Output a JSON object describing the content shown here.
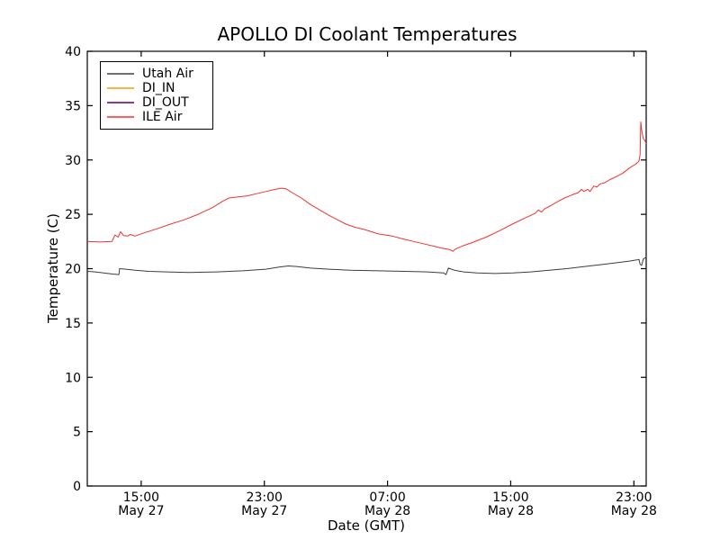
{
  "chart_data": {
    "type": "line",
    "title": "APOLLO DI Coolant Temperatures",
    "xlabel": "Date (GMT)",
    "ylabel": "Temperature (C)",
    "ylim": [
      0,
      40
    ],
    "yticks": [
      0,
      5,
      10,
      15,
      20,
      25,
      30,
      35,
      40
    ],
    "xlim": [
      11.5,
      47.8
    ],
    "x_unit": "hours since May 27 00:00 GMT",
    "xticks": [
      {
        "t": 15,
        "time": "15:00",
        "date": "May 27"
      },
      {
        "t": 23,
        "time": "23:00",
        "date": "May 27"
      },
      {
        "t": 31,
        "time": "07:00",
        "date": "May 28"
      },
      {
        "t": 39,
        "time": "15:00",
        "date": "May 28"
      },
      {
        "t": 47,
        "time": "23:00",
        "date": "May 28"
      }
    ],
    "grid": false,
    "legend_position": "upper left",
    "frame_color": "#000000",
    "background": "#ffffff",
    "series": [
      {
        "name": "Utah Air",
        "color": "#3d3d3d",
        "legend_color": "#6e6e6e",
        "points": [
          [
            11.5,
            19.75
          ],
          [
            12.0,
            19.7
          ],
          [
            12.55,
            19.6
          ],
          [
            13.15,
            19.5
          ],
          [
            13.55,
            19.45
          ],
          [
            13.6,
            20.0
          ],
          [
            14.0,
            19.95
          ],
          [
            14.6,
            19.85
          ],
          [
            15.5,
            19.75
          ],
          [
            16.65,
            19.7
          ],
          [
            18.1,
            19.65
          ],
          [
            19.9,
            19.7
          ],
          [
            21.6,
            19.8
          ],
          [
            23.1,
            19.95
          ],
          [
            23.95,
            20.15
          ],
          [
            24.55,
            20.25
          ],
          [
            25.1,
            20.2
          ],
          [
            26.0,
            20.05
          ],
          [
            27.2,
            19.95
          ],
          [
            28.6,
            19.85
          ],
          [
            30.4,
            19.8
          ],
          [
            32.1,
            19.75
          ],
          [
            33.6,
            19.7
          ],
          [
            34.65,
            19.6
          ],
          [
            34.8,
            19.45
          ],
          [
            34.95,
            20.05
          ],
          [
            35.35,
            19.85
          ],
          [
            35.95,
            19.7
          ],
          [
            36.8,
            19.6
          ],
          [
            38.0,
            19.55
          ],
          [
            39.15,
            19.6
          ],
          [
            40.3,
            19.7
          ],
          [
            41.5,
            19.85
          ],
          [
            42.65,
            20.0
          ],
          [
            43.8,
            20.2
          ],
          [
            45.0,
            20.4
          ],
          [
            45.9,
            20.55
          ],
          [
            46.75,
            20.7
          ],
          [
            47.2,
            20.8
          ],
          [
            47.33,
            20.85
          ],
          [
            47.4,
            20.4
          ],
          [
            47.5,
            20.3
          ],
          [
            47.62,
            20.9
          ],
          [
            47.74,
            21.0
          ],
          [
            47.8,
            20.9
          ]
        ]
      },
      {
        "name": "DI_IN",
        "color": "#ffa500",
        "legend_color": "#ffb340",
        "points": []
      },
      {
        "name": "DI_OUT",
        "color": "#800080",
        "legend_color": "#8e3a8e",
        "points": []
      },
      {
        "name": "ILE Air",
        "color": "#f03232",
        "legend_color": "#ff5f5f",
        "points": [
          [
            11.5,
            22.5
          ],
          [
            12.3,
            22.45
          ],
          [
            13.1,
            22.5
          ],
          [
            13.3,
            23.1
          ],
          [
            13.5,
            22.9
          ],
          [
            13.66,
            23.4
          ],
          [
            13.85,
            23.05
          ],
          [
            14.1,
            23.0
          ],
          [
            14.3,
            23.15
          ],
          [
            14.6,
            23.0
          ],
          [
            15.2,
            23.3
          ],
          [
            16.1,
            23.7
          ],
          [
            16.9,
            24.1
          ],
          [
            17.8,
            24.5
          ],
          [
            18.7,
            25.0
          ],
          [
            19.6,
            25.6
          ],
          [
            20.3,
            26.2
          ],
          [
            20.7,
            26.5
          ],
          [
            21.3,
            26.6
          ],
          [
            21.9,
            26.7
          ],
          [
            22.5,
            26.9
          ],
          [
            23.1,
            27.1
          ],
          [
            23.7,
            27.3
          ],
          [
            24.1,
            27.4
          ],
          [
            24.4,
            27.35
          ],
          [
            24.8,
            27.0
          ],
          [
            25.4,
            26.5
          ],
          [
            26.0,
            25.9
          ],
          [
            26.6,
            25.4
          ],
          [
            27.2,
            24.9
          ],
          [
            27.75,
            24.5
          ],
          [
            28.3,
            24.1
          ],
          [
            28.9,
            23.8
          ],
          [
            29.5,
            23.6
          ],
          [
            30.4,
            23.2
          ],
          [
            31.3,
            23.0
          ],
          [
            32.1,
            22.7
          ],
          [
            32.7,
            22.5
          ],
          [
            33.3,
            22.3
          ],
          [
            33.9,
            22.1
          ],
          [
            34.5,
            21.9
          ],
          [
            35.05,
            21.75
          ],
          [
            35.25,
            21.6
          ],
          [
            35.4,
            21.8
          ],
          [
            35.9,
            22.1
          ],
          [
            36.5,
            22.4
          ],
          [
            37.4,
            22.9
          ],
          [
            38.3,
            23.5
          ],
          [
            39.1,
            24.1
          ],
          [
            40.0,
            24.7
          ],
          [
            40.6,
            25.1
          ],
          [
            40.8,
            25.4
          ],
          [
            41.0,
            25.2
          ],
          [
            41.2,
            25.5
          ],
          [
            41.6,
            25.8
          ],
          [
            42.1,
            26.2
          ],
          [
            42.5,
            26.5
          ],
          [
            43.0,
            26.8
          ],
          [
            43.4,
            27.0
          ],
          [
            43.6,
            27.3
          ],
          [
            43.75,
            27.1
          ],
          [
            44.0,
            27.3
          ],
          [
            44.15,
            27.1
          ],
          [
            44.4,
            27.6
          ],
          [
            44.6,
            27.5
          ],
          [
            44.8,
            27.8
          ],
          [
            45.1,
            27.9
          ],
          [
            45.45,
            28.2
          ],
          [
            45.9,
            28.5
          ],
          [
            46.3,
            28.8
          ],
          [
            46.75,
            29.3
          ],
          [
            47.1,
            29.6
          ],
          [
            47.33,
            29.9
          ],
          [
            47.4,
            30.5
          ],
          [
            47.45,
            33.5
          ],
          [
            47.5,
            32.8
          ],
          [
            47.6,
            32.0
          ],
          [
            47.75,
            31.7
          ],
          [
            47.8,
            31.5
          ]
        ]
      }
    ]
  }
}
